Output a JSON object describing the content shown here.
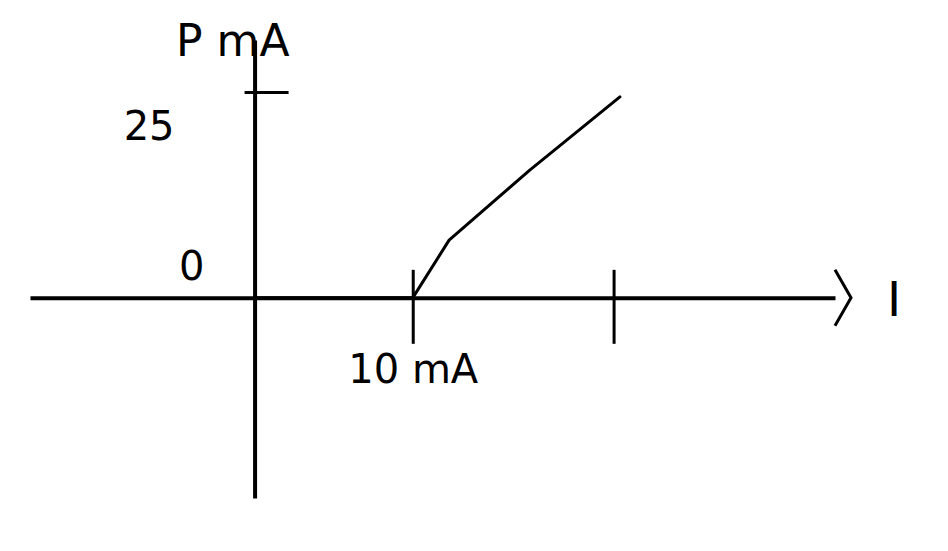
{
  "chart_data": {
    "type": "line",
    "x_label": "I",
    "y_label": "P mA",
    "x": [
      0,
      10,
      12.3,
      17.4,
      23.1
    ],
    "values": [
      0,
      0,
      7,
      15.5,
      24.4
    ],
    "color": "#000000",
    "xlim": [
      -14.2,
      36.7
    ],
    "ylim": [
      -24.3,
      31.3
    ],
    "xticks": [
      {
        "value": 10,
        "label": "10 mA"
      },
      {
        "value": 22.7,
        "label": null
      }
    ],
    "yticks": [
      0,
      25
    ],
    "grid": false
  }
}
